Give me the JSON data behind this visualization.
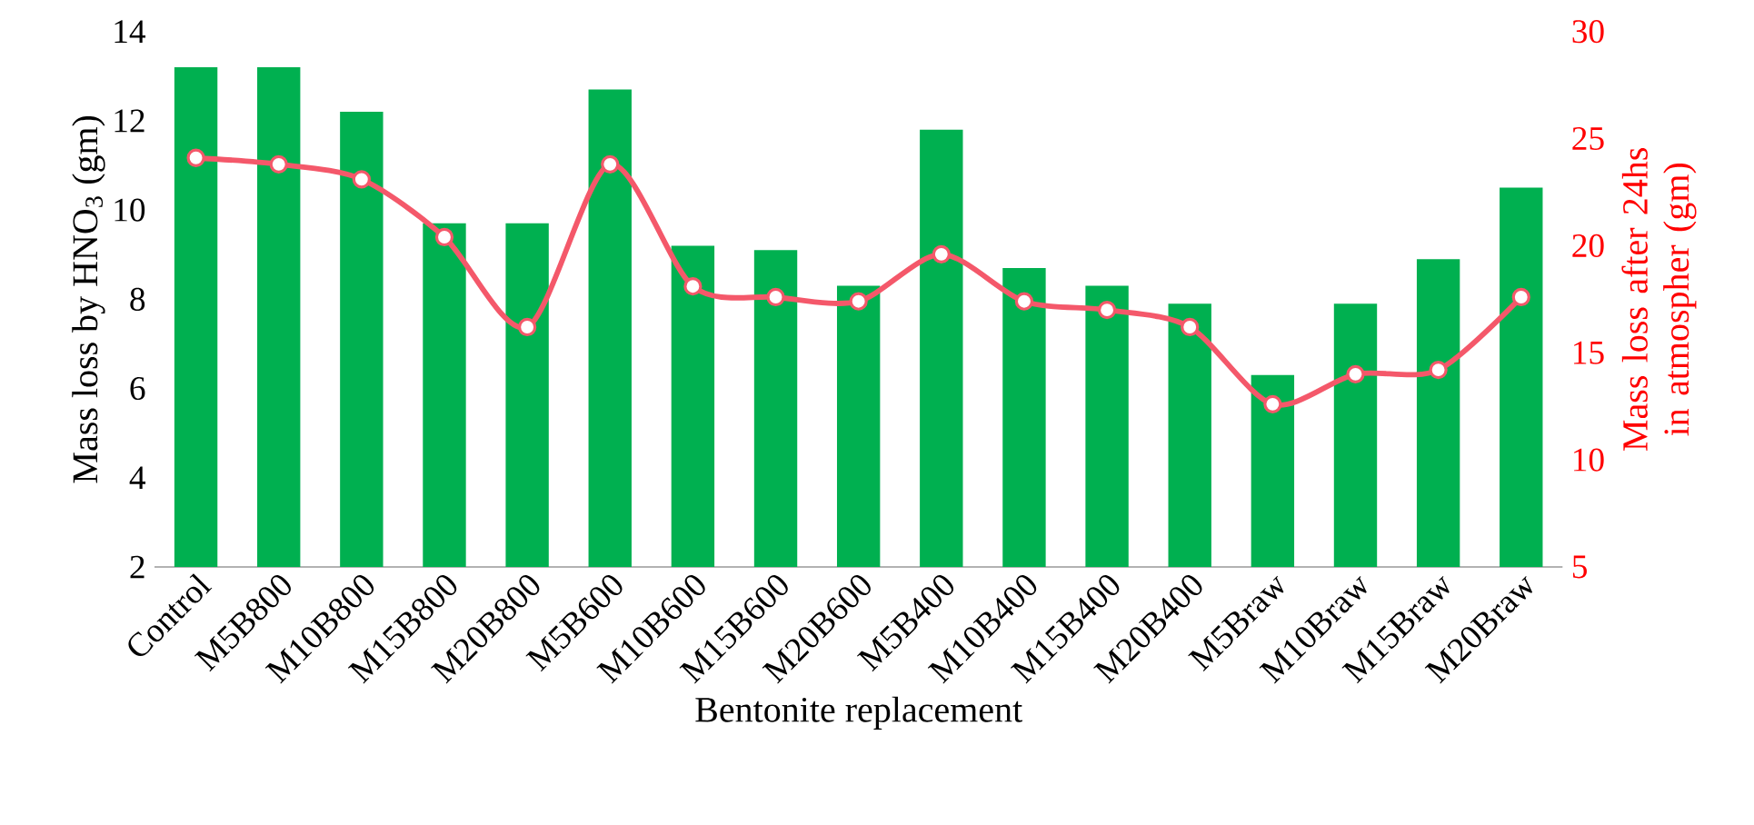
{
  "chart_data": {
    "type": "bar",
    "xlabel": "Bentonite replacement",
    "ylabel": "Mass loss by HNO$_{3}$ (gm)",
    "y2label": "Mass loss after 24hs in atmospher (gm)",
    "categories": [
      "Control",
      "M5B800",
      "M10B800",
      "M15B800",
      "M20B800",
      "M5B600",
      "M10B600",
      "M15B600",
      "M20B600",
      "M5B400",
      "M10B400",
      "M15B400",
      "M20B400",
      "M5Braw",
      "M10Braw",
      "M15Braw",
      "M20Braw"
    ],
    "series": [
      {
        "color": "#00b050",
        "values": [
          13.2,
          13.2,
          12.2,
          9.7,
          9.7,
          12.7,
          9.2,
          9.1,
          8.3,
          11.8,
          8.7,
          8.3,
          7.9,
          6.3,
          7.9,
          8.9,
          10.5
        ]
      },
      {
        "type": "line",
        "axis": "y2",
        "color": "#f4586a",
        "marker": "circle",
        "values": [
          24.1,
          23.8,
          23.1,
          20.4,
          16.2,
          23.8,
          18.1,
          17.6,
          17.4,
          19.6,
          17.4,
          17.0,
          16.2,
          12.6,
          14.0,
          14.2,
          17.6
        ]
      }
    ],
    "ylim": [
      2,
      14
    ],
    "yticks": [
      2,
      4,
      6,
      8,
      10,
      12,
      14
    ],
    "y2lim": [
      5,
      30
    ],
    "y2ticks": [
      5,
      10,
      15,
      20,
      25,
      30
    ]
  }
}
